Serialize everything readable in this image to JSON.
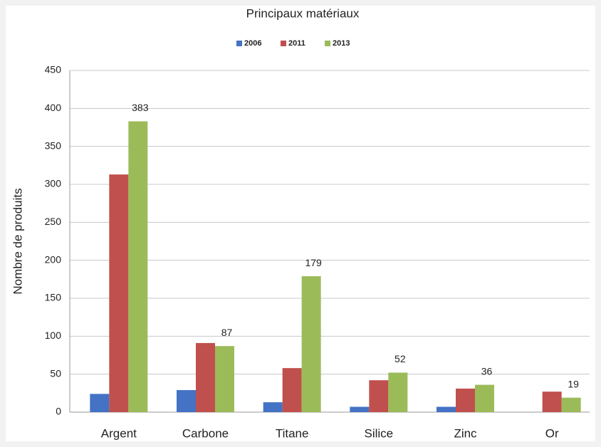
{
  "chart_data": {
    "type": "bar",
    "title": "Principaux matériaux",
    "ylabel": "Nombre de produits",
    "categories": [
      "Argent",
      "Carbone",
      "Titane",
      "Silice",
      "Zinc",
      "Or"
    ],
    "series": [
      {
        "name": "2006",
        "color": "#4472c4",
        "values": [
          24,
          29,
          13,
          7,
          7,
          null
        ]
      },
      {
        "name": "2011",
        "color": "#c0504d",
        "values": [
          313,
          91,
          58,
          42,
          31,
          27
        ]
      },
      {
        "name": "2013",
        "color": "#9bbb59",
        "values": [
          383,
          87,
          179,
          52,
          36,
          19
        ],
        "show_labels": true
      }
    ],
    "ylim": [
      0,
      450
    ],
    "yticks": [
      0,
      50,
      100,
      150,
      200,
      250,
      300,
      350,
      400,
      450
    ],
    "grid": true,
    "legend": "top"
  }
}
